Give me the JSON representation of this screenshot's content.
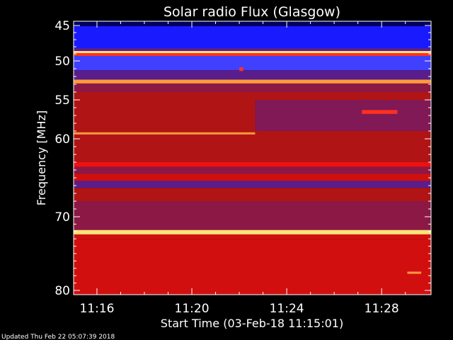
{
  "footer": {
    "updated": "Updated Thu Feb 22 05:07:39 2018"
  },
  "chart_data": {
    "type": "heatmap",
    "title": "Solar radio Flux (Glasgow)",
    "xlabel": "Start Time (03-Feb-18 11:15:01)",
    "ylabel": "Frequency [MHz]",
    "x_unit": "minutes",
    "xlim": [
      "11:15:01",
      "11:30:05"
    ],
    "ylim": [
      44.5,
      80.3
    ],
    "y_axis_inverted": true,
    "x_ticks": [
      {
        "label": "11:16",
        "minute": 16
      },
      {
        "label": "11:20",
        "minute": 20
      },
      {
        "label": "11:24",
        "minute": 24
      },
      {
        "label": "11:28",
        "minute": 28
      }
    ],
    "y_ticks": [
      {
        "label": "45",
        "value": 45
      },
      {
        "label": "50",
        "value": 50
      },
      {
        "label": "55",
        "value": 55
      },
      {
        "label": "60",
        "value": 60
      },
      {
        "label": "70",
        "value": 70
      },
      {
        "label": "80",
        "value": 80
      }
    ],
    "color_levels": [
      "#000060",
      "#1a1aff",
      "#4040ff",
      "#5a1e8c",
      "#8c1846",
      "#b01414",
      "#d20f0f",
      "#f01010",
      "#ff3020",
      "#ff9a3c",
      "#ffe07a"
    ],
    "bands": [
      {
        "from": 44.5,
        "to": 45.1,
        "level": 0
      },
      {
        "from": 45.1,
        "to": 48.2,
        "level": 1
      },
      {
        "from": 48.2,
        "to": 48.6,
        "level": 3
      },
      {
        "from": 48.6,
        "to": 48.9,
        "level": 10
      },
      {
        "from": 48.9,
        "to": 49.3,
        "level": 8
      },
      {
        "from": 49.3,
        "to": 51.2,
        "level": 2
      },
      {
        "from": 51.2,
        "to": 52.4,
        "level": 3
      },
      {
        "from": 52.4,
        "to": 52.9,
        "level": 9
      },
      {
        "from": 52.9,
        "to": 54.0,
        "level": 4
      },
      {
        "from": 54.0,
        "to": 63.0,
        "level": 5
      },
      {
        "from": 63.0,
        "to": 63.6,
        "level": 7
      },
      {
        "from": 63.6,
        "to": 64.5,
        "level": 4
      },
      {
        "from": 64.5,
        "to": 65.4,
        "level": 6
      },
      {
        "from": 65.4,
        "to": 66.3,
        "level": 3
      },
      {
        "from": 66.3,
        "to": 68.0,
        "level": 5
      },
      {
        "from": 68.0,
        "to": 71.8,
        "level": 4
      },
      {
        "from": 71.8,
        "to": 72.4,
        "level": 10
      },
      {
        "from": 72.4,
        "to": 73.0,
        "level": 6
      },
      {
        "from": 73.0,
        "to": 80.3,
        "level": 6
      }
    ],
    "features": [
      {
        "name": "bright line",
        "x_from": "11:15:01",
        "x_to": "11:22:40",
        "freq": 59.3,
        "level": 9
      },
      {
        "name": "faint region",
        "x_from": "11:22:40",
        "x_to": "11:30:05",
        "freq_from": 55.0,
        "freq_to": 59.0,
        "level": 3
      },
      {
        "name": "drifting emission",
        "x_from": "11:27:10",
        "x_to": "11:28:40",
        "freq_from": 56.8,
        "freq_to": 56.3,
        "level": 8
      },
      {
        "name": "spot",
        "x_from": "11:22:00",
        "x_to": "11:22:10",
        "freq_from": 50.8,
        "freq_to": 51.3,
        "level": 8
      },
      {
        "name": "spot",
        "x_from": "11:29:05",
        "x_to": "11:29:40",
        "freq": 77.6,
        "level": 9
      }
    ]
  }
}
